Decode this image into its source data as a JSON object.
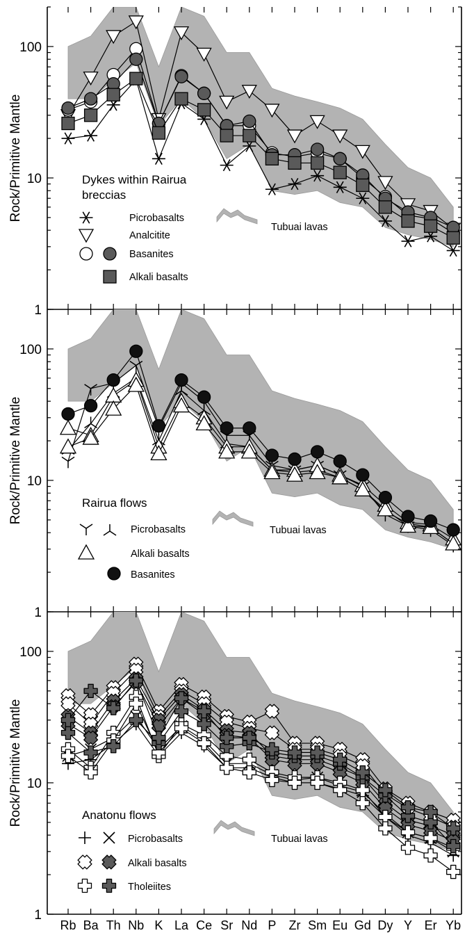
{
  "chart_data": [
    {
      "type": "line",
      "ylabel": "Rock/Primitive Mantle",
      "yscale": "log",
      "ylim": [
        1,
        200
      ],
      "yticks": [
        "1",
        "10",
        "100"
      ],
      "categories": [
        "Rb",
        "Ba",
        "Th",
        "Nb",
        "K",
        "La",
        "Ce",
        "Sr",
        "Nd",
        "P",
        "Zr",
        "Sm",
        "Eu",
        "Gd",
        "Dy",
        "Y",
        "Er",
        "Yb"
      ],
      "legend_title": "Dykes within Rairua breccias",
      "legend": [
        {
          "label": "Picrobasalts"
        },
        {
          "label": "Analcitite"
        },
        {
          "label": "Basanites"
        },
        {
          "label": "Alkali basalts"
        },
        {
          "label": "Tubuai lavas"
        }
      ],
      "band": {
        "name": "Tubuai lavas",
        "upper": [
          100,
          120,
          200,
          200,
          70,
          200,
          170,
          90,
          90,
          48,
          42,
          38,
          34,
          28,
          18,
          12,
          10,
          6
        ],
        "lower": [
          40,
          40,
          55,
          75,
          25,
          40,
          28,
          14,
          18,
          8,
          7.5,
          8,
          6.5,
          6,
          4.2,
          3.7,
          3.4,
          3.0
        ]
      },
      "series": [
        {
          "marker": "asterisk",
          "values": [
            20,
            21,
            36,
            56,
            14,
            37,
            28,
            12.5,
            17.5,
            8.2,
            9,
            10.4,
            8.5,
            7,
            4.7,
            3.3,
            3.6,
            2.8
          ]
        },
        {
          "marker": "triangle-down",
          "values": [
            30,
            58,
            120,
            155,
            28,
            128,
            88,
            38,
            46,
            33,
            21,
            27,
            21,
            16,
            9.3,
            6.3,
            5.6,
            4.1
          ]
        },
        {
          "marker": "circle-open",
          "values": [
            33,
            38,
            61,
            96,
            26,
            60,
            44,
            25,
            25,
            15.5,
            14.5,
            15.5,
            14,
            10,
            7.2,
            5.2,
            4.9,
            3.8
          ]
        },
        {
          "marker": "circle-filled",
          "values": [
            34,
            40,
            52,
            80,
            26,
            59,
            44,
            25,
            27,
            15,
            15,
            16.5,
            14,
            10.5,
            7,
            5.5,
            5,
            4.2
          ]
        },
        {
          "marker": "square",
          "values": [
            26,
            30,
            43,
            57,
            22,
            40,
            33,
            21,
            21,
            14,
            13,
            13,
            11,
            8.8,
            6,
            4.7,
            4.3,
            3.5
          ]
        }
      ]
    },
    {
      "type": "line",
      "ylabel": "Rock/Primitive Mantle",
      "yscale": "log",
      "ylim": [
        1,
        200
      ],
      "yticks": [
        "1",
        "10",
        "100"
      ],
      "categories": [
        "Rb",
        "Ba",
        "Th",
        "Nb",
        "K",
        "La",
        "Ce",
        "Sr",
        "Nd",
        "P",
        "Zr",
        "Sm",
        "Eu",
        "Gd",
        "Dy",
        "Y",
        "Er",
        "Yb"
      ],
      "legend_title": "Rairua flows",
      "legend": [
        {
          "label": "Picrobasalts"
        },
        {
          "label": "Alkali basalts"
        },
        {
          "label": "Basanites"
        },
        {
          "label": "Tubuai lavas"
        }
      ],
      "band": {
        "name": "Tubuai lavas",
        "upper": [
          100,
          120,
          200,
          200,
          70,
          200,
          170,
          90,
          90,
          48,
          42,
          38,
          34,
          28,
          18,
          12,
          10,
          6
        ],
        "lower": [
          40,
          40,
          55,
          75,
          25,
          40,
          28,
          14,
          18,
          8,
          7.5,
          8,
          6.5,
          6,
          4.2,
          3.7,
          3.4,
          3.0
        ]
      },
      "series": [
        {
          "marker": "tri-down",
          "values": [
            14,
            50,
            55,
            75,
            25,
            55,
            40,
            22,
            22,
            13,
            12,
            13,
            11,
            9,
            5.5,
            4.5,
            4.2,
            3.2
          ]
        },
        {
          "marker": "tri-up",
          "values": [
            17,
            27,
            46,
            60,
            20,
            48,
            34,
            19,
            18,
            12,
            11.5,
            12,
            10.5,
            8.5,
            5.8,
            4.7,
            4.4,
            3.3
          ]
        },
        {
          "marker": "triangle-up",
          "values": [
            25,
            22,
            44,
            58,
            18,
            40,
            30,
            18,
            18,
            12,
            12,
            13,
            11,
            9.2,
            6.5,
            4.8,
            4.6,
            3.6
          ]
        },
        {
          "marker": "triangle-up",
          "values": [
            18,
            21,
            35,
            53,
            16,
            37,
            27,
            16.5,
            16.5,
            11.5,
            11,
            11.5,
            10.5,
            8.5,
            6,
            4.5,
            4.4,
            3.3
          ]
        },
        {
          "marker": "circle-filled",
          "values": [
            32,
            37,
            58,
            96,
            26,
            58,
            43,
            25,
            25,
            15.5,
            14.5,
            16.5,
            14,
            11,
            7.4,
            5.3,
            4.9,
            4.2
          ]
        }
      ]
    },
    {
      "type": "line",
      "ylabel": "Rock/Primitive Mantle",
      "yscale": "log",
      "ylim": [
        1,
        200
      ],
      "yticks": [
        "1",
        "10",
        "100"
      ],
      "categories": [
        "Rb",
        "Ba",
        "Th",
        "Nb",
        "K",
        "La",
        "Ce",
        "Sr",
        "Nd",
        "P",
        "Zr",
        "Sm",
        "Eu",
        "Gd",
        "Dy",
        "Y",
        "Er",
        "Yb"
      ],
      "legend_title": "Anatonu flows",
      "legend": [
        {
          "label": "Picrobasalts"
        },
        {
          "label": "Alkali basalts"
        },
        {
          "label": "Tholeiites"
        },
        {
          "label": "Tubuai lavas"
        }
      ],
      "band": {
        "name": "Tubuai lavas",
        "upper": [
          100,
          120,
          200,
          200,
          70,
          200,
          170,
          90,
          90,
          48,
          42,
          38,
          34,
          28,
          18,
          12,
          10,
          6
        ],
        "lower": [
          40,
          40,
          55,
          75,
          25,
          40,
          28,
          14,
          18,
          8,
          7.5,
          8,
          6.5,
          6,
          4.2,
          3.7,
          3.4,
          3.0
        ]
      },
      "series": [
        {
          "marker": "plus",
          "values": [
            14,
            15,
            20,
            28,
            16,
            24,
            19,
            13,
            13,
            11,
            10,
            10,
            9,
            8,
            5.5,
            4,
            3.5,
            2.8
          ]
        },
        {
          "marker": "x",
          "values": [
            16,
            18,
            22,
            32,
            18,
            27,
            21,
            14,
            14,
            11.5,
            10.5,
            11,
            9.5,
            8.5,
            5.8,
            4.2,
            3.8,
            3.0
          ]
        },
        {
          "marker": "diamond-cross-open",
          "values": [
            46,
            33,
            53,
            80,
            35,
            56,
            45,
            32,
            29,
            35,
            20,
            20,
            18,
            15,
            9,
            7,
            6,
            5.2
          ]
        },
        {
          "marker": "diamond-cross-open",
          "values": [
            40,
            28,
            48,
            72,
            32,
            50,
            40,
            29,
            26,
            24,
            18,
            18,
            16,
            13.5,
            8.2,
            6.4,
            5.5,
            4.6
          ]
        },
        {
          "marker": "diamond-cross-filled",
          "values": [
            32,
            24,
            42,
            62,
            30,
            47,
            36,
            25,
            24,
            16,
            15,
            15,
            13,
            11,
            7,
            5.2,
            4.7,
            4.0
          ]
        },
        {
          "marker": "diamond-cross-filled",
          "values": [
            28,
            22,
            38,
            58,
            27,
            44,
            33,
            23,
            22,
            15,
            14,
            14,
            12,
            10,
            6.4,
            4.8,
            4.3,
            3.6
          ]
        },
        {
          "marker": "cross-open",
          "values": [
            18,
            13,
            24,
            45,
            16,
            28,
            23,
            16,
            15,
            12,
            11,
            11,
            10,
            8.8,
            5.5,
            4.2,
            3.8,
            3.2
          ]
        },
        {
          "marker": "cross-open",
          "values": [
            16,
            12,
            21,
            40,
            17,
            26,
            20,
            13,
            12,
            10.5,
            10,
            10,
            8.8,
            7,
            4.5,
            3.2,
            2.8,
            2.1
          ]
        },
        {
          "marker": "cross-filled",
          "values": [
            24,
            17,
            19,
            30,
            20,
            35,
            28,
            19,
            20,
            17,
            16,
            16,
            14,
            11,
            8,
            5.6,
            5,
            3.3
          ]
        },
        {
          "marker": "cross-filled",
          "values": [
            30,
            50,
            37,
            60,
            22,
            44,
            35,
            22,
            22,
            18,
            17,
            17,
            15,
            12,
            8.8,
            6.5,
            6,
            4.5
          ]
        }
      ]
    }
  ],
  "x_axis_labels": [
    "Rb",
    "Ba",
    "Th",
    "Nb",
    "K",
    "La",
    "Ce",
    "Sr",
    "Nd",
    "P",
    "Zr",
    "Sm",
    "Eu",
    "Gd",
    "Dy",
    "Y",
    "Er",
    "Yb"
  ]
}
